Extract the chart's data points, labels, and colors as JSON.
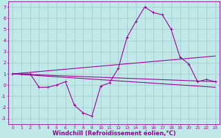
{
  "background_color": "#c0e8e8",
  "grid_color": "#a0c8c8",
  "line_color": "#990099",
  "marker_style": "+",
  "marker_size": 3.5,
  "line_width": 0.8,
  "xlim": [
    -0.5,
    23.5
  ],
  "ylim": [
    -3.5,
    7.5
  ],
  "xticks": [
    0,
    1,
    2,
    3,
    4,
    5,
    6,
    7,
    8,
    9,
    10,
    11,
    12,
    13,
    14,
    15,
    16,
    17,
    18,
    19,
    20,
    21,
    22,
    23
  ],
  "yticks": [
    -3,
    -2,
    -1,
    0,
    1,
    2,
    3,
    4,
    5,
    6,
    7
  ],
  "xlabel": "Windchill (Refroidissement éolien,°C)",
  "xlabel_fontsize": 6.0,
  "series": [
    [
      0,
      1.0
    ],
    [
      1,
      1.0
    ],
    [
      2,
      1.0
    ],
    [
      3,
      -0.2
    ],
    [
      4,
      -0.2
    ],
    [
      5,
      0.0
    ],
    [
      6,
      0.3
    ],
    [
      7,
      -1.8
    ],
    [
      8,
      -2.5
    ],
    [
      9,
      -2.8
    ],
    [
      10,
      -0.1
    ],
    [
      11,
      0.2
    ],
    [
      12,
      1.5
    ],
    [
      13,
      4.3
    ],
    [
      14,
      5.7
    ],
    [
      15,
      7.0
    ],
    [
      16,
      6.5
    ],
    [
      17,
      6.3
    ],
    [
      18,
      5.0
    ],
    [
      19,
      2.5
    ],
    [
      20,
      1.9
    ],
    [
      21,
      0.3
    ],
    [
      22,
      0.5
    ],
    [
      23,
      0.3
    ]
  ],
  "regression_lines": [
    {
      "x": [
        0,
        23
      ],
      "y": [
        1.0,
        -0.2
      ]
    },
    {
      "x": [
        0,
        23
      ],
      "y": [
        1.0,
        2.6
      ]
    },
    {
      "x": [
        0,
        23
      ],
      "y": [
        1.0,
        0.3
      ]
    }
  ]
}
